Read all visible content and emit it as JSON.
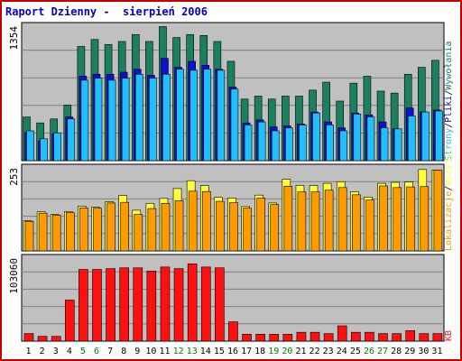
{
  "window": {
    "title": "Raport Dzienny -  sierpień 2006"
  },
  "colors": {
    "panel_bg": "#c0c0c0",
    "grid": "#808080",
    "visits": "#1a8060",
    "pages": "#1010d0",
    "files": "#20c0ff",
    "hits": "#ffff40",
    "sites": "#ff9a00",
    "kbytes": "#ff1010",
    "title": "#0000cc",
    "border": "#c00000",
    "weekend_label": "#008000"
  },
  "chart_data": [
    {
      "type": "bar",
      "name": "panel-1",
      "categories": [
        "1",
        "2",
        "3",
        "4",
        "5",
        "6",
        "7",
        "8",
        "9",
        "10",
        "11",
        "12",
        "13",
        "14",
        "15",
        "16",
        "17",
        "18",
        "19",
        "20",
        "21",
        "22",
        "23",
        "24",
        "25",
        "26",
        "27",
        "28",
        "29",
        "30",
        "31"
      ],
      "weekend_days": [
        "5",
        "6",
        "12",
        "13",
        "19",
        "20",
        "26",
        "27"
      ],
      "y_tick_label": "1354",
      "ylim": [
        0,
        1354
      ],
      "series": [
        {
          "name": "Wywołania",
          "values": [
            440,
            380,
            420,
            560,
            1150,
            1220,
            1170,
            1200,
            1270,
            1200,
            1350,
            1240,
            1270,
            1260,
            1200,
            1000,
            620,
            650,
            620,
            650,
            650,
            710,
            790,
            600,
            780,
            850,
            700,
            680,
            870,
            940,
            1010
          ]
        },
        {
          "name": "Pliki",
          "values": [
            280,
            200,
            270,
            440,
            850,
            870,
            870,
            890,
            920,
            860,
            1030,
            940,
            1000,
            960,
            920,
            740,
            380,
            410,
            340,
            350,
            370,
            490,
            390,
            330,
            480,
            460,
            390,
            320,
            530,
            490,
            510
          ]
        },
        {
          "name": "Strony",
          "values": [
            300,
            220,
            280,
            420,
            810,
            830,
            810,
            830,
            870,
            830,
            870,
            920,
            910,
            920,
            910,
            720,
            360,
            390,
            300,
            330,
            360,
            480,
            360,
            300,
            470,
            440,
            330,
            320,
            450,
            490,
            500
          ]
        }
      ]
    },
    {
      "type": "bar",
      "name": "panel-2",
      "categories": [
        "1",
        "2",
        "3",
        "4",
        "5",
        "6",
        "7",
        "8",
        "9",
        "10",
        "11",
        "12",
        "13",
        "14",
        "15",
        "16",
        "17",
        "18",
        "19",
        "20",
        "21",
        "22",
        "23",
        "24",
        "25",
        "26",
        "27",
        "28",
        "29",
        "30",
        "31"
      ],
      "y_tick_label": "253",
      "ylim": [
        0,
        253
      ],
      "series": [
        {
          "name": "Wizyty",
          "values": [
            92,
            119,
            111,
            120,
            136,
            133,
            150,
            169,
            124,
            145,
            160,
            190,
            214,
            199,
            163,
            161,
            135,
            170,
            146,
            218,
            200,
            199,
            206,
            211,
            180,
            164,
            206,
            209,
            210,
            248,
            246
          ]
        },
        {
          "name": "Lokalizacje",
          "values": [
            90,
            115,
            109,
            117,
            131,
            130,
            146,
            148,
            111,
            129,
            145,
            153,
            182,
            181,
            151,
            147,
            130,
            161,
            141,
            197,
            180,
            180,
            185,
            193,
            171,
            155,
            198,
            193,
            195,
            196,
            246
          ]
        }
      ]
    },
    {
      "type": "bar",
      "name": "panel-3",
      "categories": [
        "1",
        "2",
        "3",
        "4",
        "5",
        "6",
        "7",
        "8",
        "9",
        "10",
        "11",
        "12",
        "13",
        "14",
        "15",
        "16",
        "17",
        "18",
        "19",
        "20",
        "21",
        "22",
        "23",
        "24",
        "25",
        "26",
        "27",
        "28",
        "29",
        "30",
        "31"
      ],
      "y_tick_label": "103060",
      "ylim": [
        0,
        103060
      ],
      "series": [
        {
          "name": "KB",
          "values": [
            9400,
            6000,
            6000,
            51000,
            89000,
            89000,
            90000,
            91000,
            91000,
            87000,
            92000,
            90000,
            96000,
            92000,
            91000,
            24000,
            8600,
            8600,
            8600,
            8600,
            11000,
            11000,
            9400,
            19000,
            11000,
            11000,
            9400,
            9400,
            13000,
            9400,
            9400
          ]
        }
      ]
    }
  ],
  "legend_right": {
    "top": [
      "Wywołania",
      "/",
      "Pliki",
      "/",
      "Strony"
    ],
    "middle": [
      "Lokalizacje",
      "/",
      "Wizyty"
    ],
    "bottom": [
      "KB"
    ]
  }
}
